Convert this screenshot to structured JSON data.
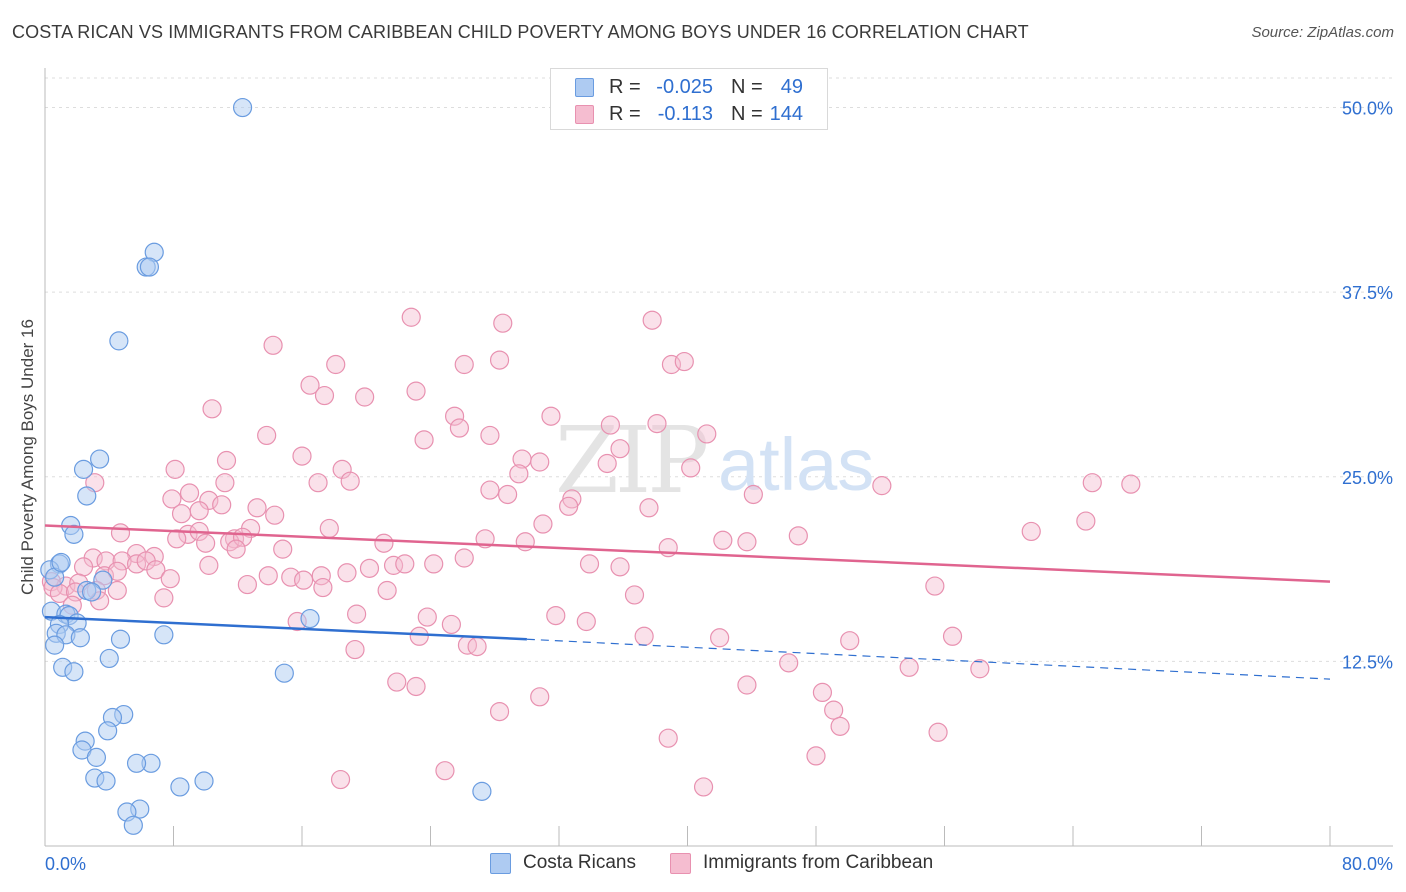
{
  "title": "COSTA RICAN VS IMMIGRANTS FROM CARIBBEAN CHILD POVERTY AMONG BOYS UNDER 16 CORRELATION CHART",
  "source": "Source: ZipAtlas.com",
  "watermark": {
    "zip": "ZIP",
    "atlas": "atlas"
  },
  "legend": {
    "series1": {
      "r_label": "R =",
      "r_value": "-0.025",
      "n_label": "N =",
      "n_value": "49"
    },
    "series2": {
      "r_label": "R =",
      "r_value": "-0.113",
      "n_label": "N =",
      "n_value": "144"
    }
  },
  "bottom_legend": {
    "series1": "Costa Ricans",
    "series2": "Immigrants from Caribbean"
  },
  "colors": {
    "blue_fill": "#aecbf2",
    "blue_stroke": "#6a9ce0",
    "blue_line": "#2f6fd0",
    "pink_fill": "#f5bdd0",
    "pink_stroke": "#e891b0",
    "pink_line": "#e0648f",
    "tick_label": "#2f6fd0",
    "grid": "#dddddd"
  },
  "chart_data": {
    "type": "scatter",
    "title": "COSTA RICAN VS IMMIGRANTS FROM CARIBBEAN CHILD POVERTY AMONG BOYS UNDER 16 CORRELATION CHART",
    "xlabel": "",
    "ylabel": "Child Poverty Among Boys Under 16",
    "xlim": [
      0,
      80
    ],
    "ylim": [
      0,
      52
    ],
    "x_tick_labels": [
      "0.0%",
      "80.0%"
    ],
    "y_ticks": [
      12.5,
      25.0,
      37.5,
      50.0
    ],
    "y_tick_labels": [
      "12.5%",
      "25.0%",
      "37.5%",
      "50.0%"
    ],
    "grid": true,
    "series": [
      {
        "name": "Costa Ricans",
        "color": "blue",
        "trend": {
          "x0": 0,
          "y0": 15.5,
          "x1": 30,
          "y1": 14.0,
          "dashed_to_x": 80,
          "dashed_to_y": 11.3
        },
        "points": [
          [
            12.3,
            50.0
          ],
          [
            6.8,
            40.2
          ],
          [
            6.3,
            39.2
          ],
          [
            6.5,
            39.2
          ],
          [
            4.6,
            34.2
          ],
          [
            3.4,
            26.2
          ],
          [
            2.4,
            25.5
          ],
          [
            2.6,
            23.7
          ],
          [
            1.6,
            21.7
          ],
          [
            1.8,
            21.1
          ],
          [
            0.9,
            19.1
          ],
          [
            0.3,
            18.7
          ],
          [
            3.6,
            18.0
          ],
          [
            0.6,
            18.2
          ],
          [
            2.6,
            17.3
          ],
          [
            2.9,
            17.2
          ],
          [
            0.4,
            15.9
          ],
          [
            1.3,
            15.7
          ],
          [
            1.5,
            15.6
          ],
          [
            2.0,
            15.1
          ],
          [
            0.9,
            15.0
          ],
          [
            16.5,
            15.4
          ],
          [
            0.7,
            14.4
          ],
          [
            1.3,
            14.3
          ],
          [
            2.2,
            14.1
          ],
          [
            7.4,
            14.3
          ],
          [
            4.7,
            14.0
          ],
          [
            0.6,
            13.6
          ],
          [
            4.0,
            12.7
          ],
          [
            1.1,
            12.1
          ],
          [
            1.8,
            11.8
          ],
          [
            14.9,
            11.7
          ],
          [
            4.9,
            8.9
          ],
          [
            4.2,
            8.7
          ],
          [
            3.9,
            7.8
          ],
          [
            2.5,
            7.1
          ],
          [
            2.3,
            6.5
          ],
          [
            3.2,
            6.0
          ],
          [
            6.6,
            5.6
          ],
          [
            5.7,
            5.6
          ],
          [
            3.1,
            4.6
          ],
          [
            3.8,
            4.4
          ],
          [
            9.9,
            4.4
          ],
          [
            8.4,
            4.0
          ],
          [
            27.2,
            3.7
          ],
          [
            5.9,
            2.5
          ],
          [
            5.1,
            2.3
          ],
          [
            5.5,
            1.4
          ],
          [
            1.0,
            19.2
          ]
        ]
      },
      {
        "name": "Immigrants from Caribbean",
        "color": "pink",
        "trend": {
          "x0": 0,
          "y0": 21.7,
          "x1": 80,
          "y1": 17.9
        },
        "points": [
          [
            22.8,
            35.8
          ],
          [
            28.5,
            35.4
          ],
          [
            37.8,
            35.6
          ],
          [
            14.2,
            33.9
          ],
          [
            18.1,
            32.6
          ],
          [
            26.1,
            32.6
          ],
          [
            28.3,
            32.9
          ],
          [
            39.0,
            32.6
          ],
          [
            39.8,
            32.8
          ],
          [
            16.5,
            31.2
          ],
          [
            23.1,
            30.8
          ],
          [
            17.4,
            30.5
          ],
          [
            19.9,
            30.4
          ],
          [
            10.4,
            29.6
          ],
          [
            25.5,
            29.1
          ],
          [
            31.5,
            29.1
          ],
          [
            35.2,
            28.5
          ],
          [
            38.1,
            28.6
          ],
          [
            25.8,
            28.3
          ],
          [
            13.8,
            27.8
          ],
          [
            27.7,
            27.8
          ],
          [
            23.6,
            27.5
          ],
          [
            41.2,
            27.9
          ],
          [
            16.0,
            26.4
          ],
          [
            11.3,
            26.1
          ],
          [
            29.7,
            26.2
          ],
          [
            30.8,
            26.0
          ],
          [
            35.0,
            25.9
          ],
          [
            35.8,
            26.9
          ],
          [
            40.2,
            25.6
          ],
          [
            8.1,
            25.5
          ],
          [
            18.5,
            25.5
          ],
          [
            29.5,
            25.2
          ],
          [
            3.1,
            24.6
          ],
          [
            11.2,
            24.6
          ],
          [
            17.0,
            24.6
          ],
          [
            19.0,
            24.7
          ],
          [
            52.1,
            24.4
          ],
          [
            65.2,
            24.6
          ],
          [
            67.6,
            24.5
          ],
          [
            7.9,
            23.5
          ],
          [
            9.0,
            23.9
          ],
          [
            10.2,
            23.4
          ],
          [
            27.7,
            24.1
          ],
          [
            28.8,
            23.8
          ],
          [
            32.8,
            23.5
          ],
          [
            44.1,
            23.8
          ],
          [
            32.6,
            23.0
          ],
          [
            11.0,
            23.1
          ],
          [
            9.6,
            22.7
          ],
          [
            13.2,
            22.9
          ],
          [
            14.3,
            22.4
          ],
          [
            37.6,
            22.9
          ],
          [
            8.5,
            22.5
          ],
          [
            12.8,
            21.5
          ],
          [
            17.7,
            21.5
          ],
          [
            31.0,
            21.8
          ],
          [
            4.7,
            21.2
          ],
          [
            8.9,
            21.1
          ],
          [
            9.6,
            21.3
          ],
          [
            8.2,
            20.8
          ],
          [
            10.0,
            20.5
          ],
          [
            11.8,
            20.8
          ],
          [
            11.5,
            20.6
          ],
          [
            12.3,
            20.9
          ],
          [
            21.1,
            20.5
          ],
          [
            27.4,
            20.8
          ],
          [
            29.9,
            20.6
          ],
          [
            38.8,
            20.2
          ],
          [
            42.2,
            20.7
          ],
          [
            43.7,
            20.6
          ],
          [
            46.9,
            21.0
          ],
          [
            61.4,
            21.3
          ],
          [
            64.8,
            22.0
          ],
          [
            11.9,
            20.1
          ],
          [
            14.8,
            20.1
          ],
          [
            5.7,
            19.8
          ],
          [
            6.8,
            19.6
          ],
          [
            3.0,
            19.5
          ],
          [
            3.8,
            19.3
          ],
          [
            4.8,
            19.3
          ],
          [
            5.7,
            19.1
          ],
          [
            6.3,
            19.3
          ],
          [
            26.1,
            19.5
          ],
          [
            10.2,
            19.0
          ],
          [
            20.2,
            18.8
          ],
          [
            21.7,
            19.0
          ],
          [
            22.4,
            19.1
          ],
          [
            24.2,
            19.1
          ],
          [
            33.9,
            19.1
          ],
          [
            35.8,
            18.9
          ],
          [
            2.4,
            18.9
          ],
          [
            3.7,
            18.3
          ],
          [
            4.5,
            18.6
          ],
          [
            6.9,
            18.7
          ],
          [
            13.9,
            18.3
          ],
          [
            15.3,
            18.2
          ],
          [
            16.1,
            18.0
          ],
          [
            17.2,
            18.3
          ],
          [
            18.8,
            18.5
          ],
          [
            0.4,
            17.9
          ],
          [
            1.3,
            17.6
          ],
          [
            2.1,
            17.8
          ],
          [
            7.8,
            18.1
          ],
          [
            12.6,
            17.7
          ],
          [
            17.3,
            17.5
          ],
          [
            21.3,
            17.3
          ],
          [
            0.5,
            17.5
          ],
          [
            0.9,
            17.1
          ],
          [
            1.9,
            17.2
          ],
          [
            3.2,
            17.3
          ],
          [
            4.5,
            17.3
          ],
          [
            7.4,
            16.8
          ],
          [
            36.7,
            17.0
          ],
          [
            55.4,
            17.6
          ],
          [
            1.7,
            16.3
          ],
          [
            3.4,
            16.6
          ],
          [
            19.4,
            15.7
          ],
          [
            23.8,
            15.5
          ],
          [
            31.8,
            15.6
          ],
          [
            15.7,
            15.2
          ],
          [
            25.3,
            15.0
          ],
          [
            33.7,
            15.2
          ],
          [
            23.3,
            14.2
          ],
          [
            37.3,
            14.2
          ],
          [
            42.0,
            14.1
          ],
          [
            56.5,
            14.2
          ],
          [
            26.3,
            13.6
          ],
          [
            26.9,
            13.5
          ],
          [
            19.3,
            13.3
          ],
          [
            50.1,
            13.9
          ],
          [
            46.3,
            12.4
          ],
          [
            53.8,
            12.1
          ],
          [
            58.2,
            12.0
          ],
          [
            21.9,
            11.1
          ],
          [
            23.1,
            10.8
          ],
          [
            43.7,
            10.9
          ],
          [
            30.8,
            10.1
          ],
          [
            48.4,
            10.4
          ],
          [
            49.1,
            9.2
          ],
          [
            28.3,
            9.1
          ],
          [
            49.5,
            8.1
          ],
          [
            55.6,
            7.7
          ],
          [
            38.8,
            7.3
          ],
          [
            48.0,
            6.1
          ],
          [
            18.4,
            4.5
          ],
          [
            24.9,
            5.1
          ],
          [
            41.0,
            4.0
          ]
        ]
      }
    ]
  }
}
